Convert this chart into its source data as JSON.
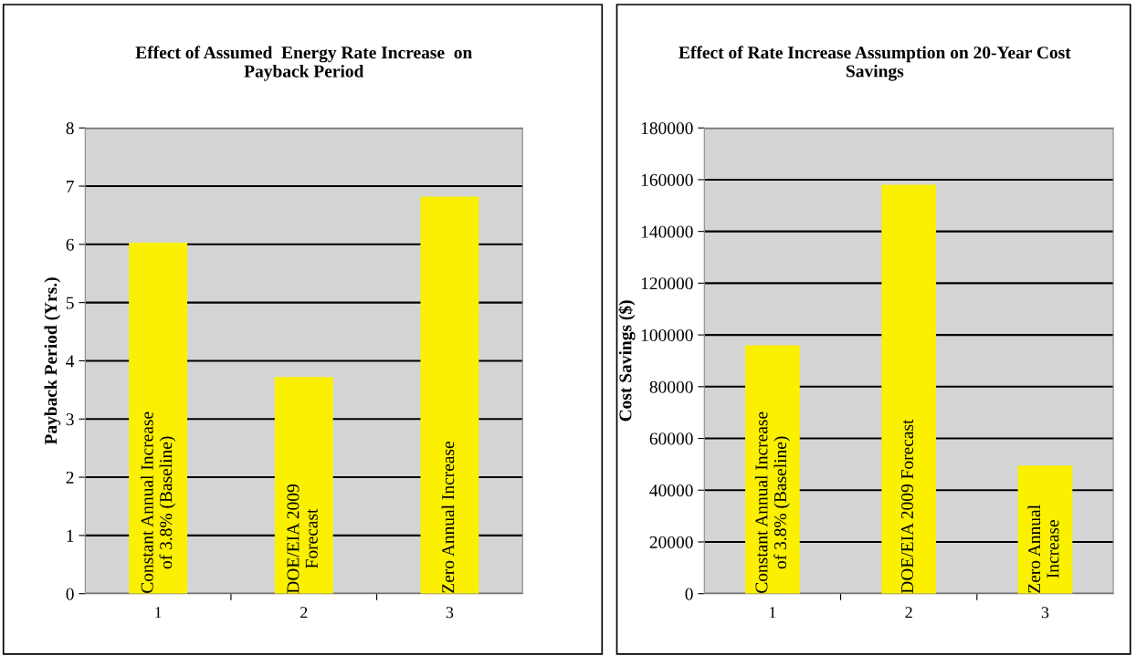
{
  "chart_data": [
    {
      "type": "bar",
      "title": "Effect of Assumed  Energy Rate Increase  on\nPayback Period",
      "ylabel": "Payback Period (Yrs.)",
      "categories": [
        "1",
        "2",
        "3"
      ],
      "values": [
        6.03,
        3.72,
        6.82
      ],
      "color": "#faf000",
      "ylim": [
        0,
        8
      ],
      "yticks": [
        0,
        1,
        2,
        3,
        4,
        5,
        6,
        7,
        8
      ],
      "grid": "y",
      "annotations": [
        {
          "text": "Constant Annual Increase\nof 3.8% (Baseline)",
          "x": "1",
          "y": 0
        },
        {
          "text": "DOE/EIA 2009\nForecast",
          "x": "2",
          "y": 0
        },
        {
          "text": "Zero Annual Increase",
          "x": "3",
          "y": 0
        }
      ]
    },
    {
      "type": "bar",
      "title": "Effect of Rate Increase Assumption on 20-Year Cost\nSavings",
      "ylabel": "Cost Savings ($)",
      "categories": [
        "1",
        "2",
        "3"
      ],
      "values": [
        96000,
        158000,
        49500
      ],
      "color": "#faf000",
      "ylim": [
        0,
        180000
      ],
      "yticks": [
        0,
        20000,
        40000,
        60000,
        80000,
        100000,
        120000,
        140000,
        160000,
        180000
      ],
      "grid": "y",
      "annotations": [
        {
          "text": "Constant Annual Increase\nof 3.8% (Baseline)",
          "x": "1",
          "y": 0
        },
        {
          "text": "DOE/EIA 2009 Forecast",
          "x": "2",
          "y": 0
        },
        {
          "text": "Zero Annual\nIncrease",
          "x": "3",
          "y": 0
        }
      ]
    }
  ]
}
